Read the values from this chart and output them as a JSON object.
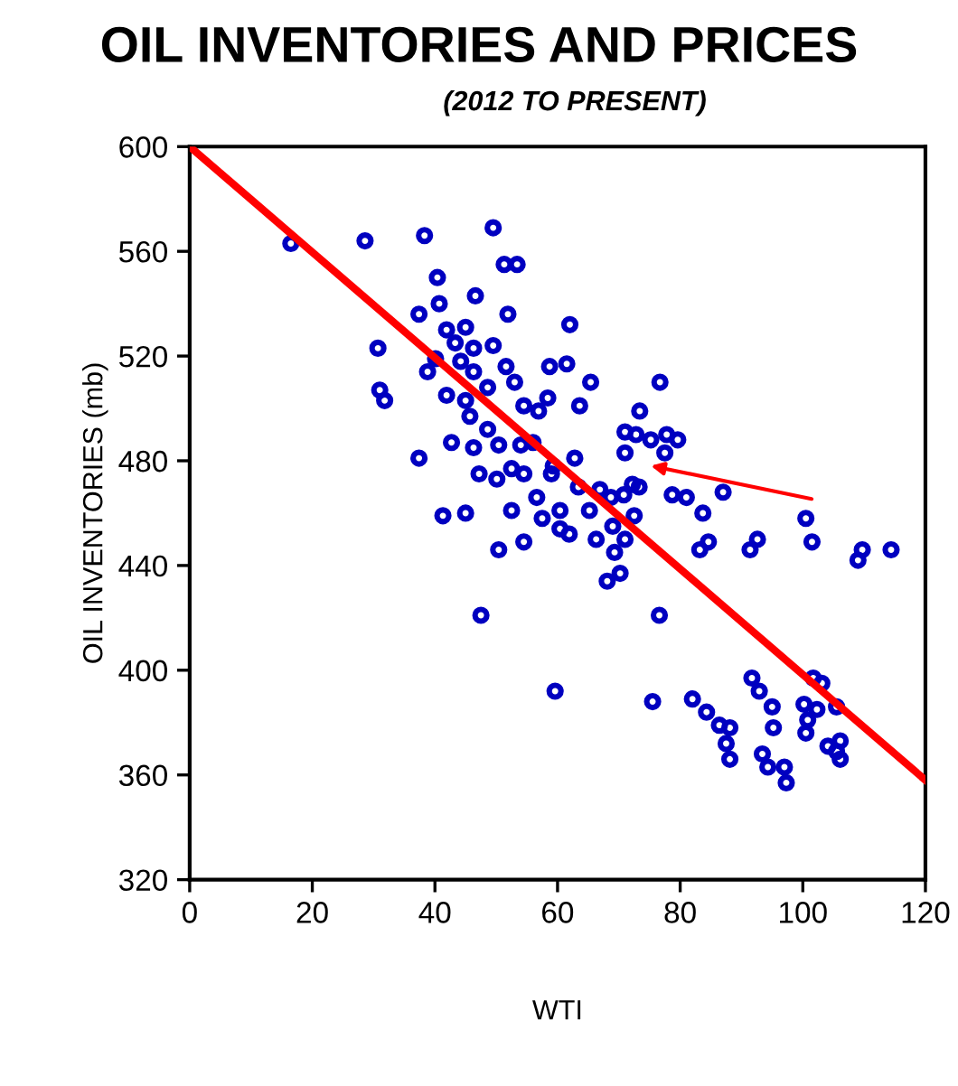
{
  "chart_data": {
    "type": "scatter",
    "title": "OIL INVENTORIES AND PRICES",
    "subtitle": "(2012 TO PRESENT)",
    "xlabel": "WTI",
    "ylabel": "OIL INVENTORIES (mb)",
    "xlim": [
      0,
      120
    ],
    "xticks": [
      0,
      20,
      40,
      60,
      80,
      100,
      120
    ],
    "ylim": [
      320,
      600
    ],
    "yticks": [
      320,
      360,
      400,
      440,
      480,
      520,
      560,
      600
    ],
    "grid": false,
    "series": [
      {
        "marker": "circle",
        "color": "#0000c0",
        "x": [
          16.5,
          28.6,
          38.3,
          49.5,
          51.3,
          53.4,
          40.4,
          40.7,
          46.6,
          37.4,
          51.9,
          30.7,
          41.9,
          45,
          43.3,
          46.3,
          49.5,
          44.2,
          40.1,
          38.8,
          46.3,
          51.6,
          41.9,
          53,
          31,
          31.8,
          45,
          48.6,
          54.5,
          58.4,
          45.7,
          42.7,
          48.6,
          56.9,
          46.3,
          50.4,
          37.4,
          54,
          56,
          47.2,
          50.1,
          52.5,
          54.5,
          59.3,
          62.8,
          41.3,
          45,
          52.5,
          56.6,
          57.5,
          59,
          60.4,
          63.4,
          65.2,
          54.5,
          50.4,
          60.4,
          61.9,
          66.3,
          69,
          71,
          72.5,
          66.9,
          68.7,
          70.8,
          73.3,
          68.1,
          70.2,
          69.3,
          47.5,
          59.6,
          62,
          58.7,
          61.5,
          65.4,
          63.6,
          76.7,
          73.4,
          71,
          71,
          72.8,
          75.2,
          77.8,
          79.6,
          77.5,
          72.2,
          78.7,
          81,
          83.7,
          87,
          100.5,
          101.5,
          109.7,
          109,
          114.4,
          92.6,
          91.4,
          84.6,
          83.2,
          76.6,
          75.5,
          82,
          84.3,
          86.4,
          88.1,
          87.5,
          88.1,
          91.7,
          92.9,
          95,
          95.2,
          93.4,
          94.3,
          97,
          97.3,
          100.2,
          100.8,
          100.5,
          102.3,
          101.7,
          103.1,
          105.5,
          104.1,
          105.5,
          106.1,
          106.1
        ],
        "values": [
          563,
          564,
          566,
          569,
          555,
          555,
          550,
          540,
          543,
          536,
          536,
          523,
          530,
          531,
          525,
          523,
          524,
          518,
          519,
          514,
          514,
          516,
          505,
          510,
          507,
          503,
          503,
          508,
          501,
          504,
          497,
          487,
          492,
          499,
          485,
          486,
          481,
          486,
          487,
          475,
          473,
          477,
          475,
          478,
          481,
          459,
          460,
          461,
          466,
          458,
          475,
          461,
          470,
          461,
          449,
          446,
          454,
          452,
          450,
          455,
          450,
          459,
          469,
          466,
          467,
          470,
          434,
          437,
          445,
          421,
          392,
          532,
          516,
          517,
          510,
          501,
          510,
          499,
          491,
          483,
          490,
          488,
          490,
          488,
          483,
          471,
          467,
          466,
          460,
          468,
          458,
          449,
          446,
          442,
          446,
          450,
          446,
          449,
          446,
          421,
          388,
          389,
          384,
          379,
          378,
          372,
          366,
          397,
          392,
          386,
          378,
          368,
          363,
          363,
          357,
          387,
          381,
          376,
          385,
          397,
          395,
          386,
          371,
          369,
          366,
          373
        ]
      },
      {
        "type": "line",
        "color": "#ff0000",
        "line_style": "solid",
        "x": [
          0,
          120
        ],
        "values": [
          600,
          358
        ]
      }
    ]
  }
}
